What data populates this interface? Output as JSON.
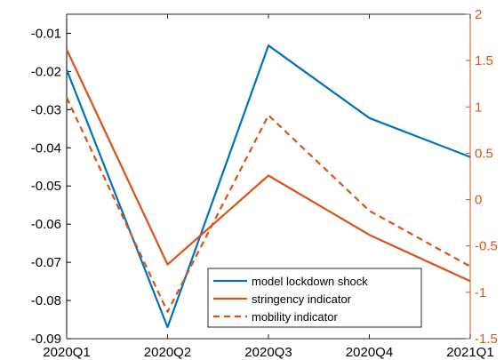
{
  "chart_data": {
    "type": "line",
    "categories": [
      "2020Q1",
      "2020Q2",
      "2020Q3",
      "2020Q4",
      "2021Q1"
    ],
    "left_axis": {
      "ylim": [
        -0.09,
        -0.005
      ],
      "ticks": [
        -0.09,
        -0.08,
        -0.07,
        -0.06,
        -0.05,
        -0.04,
        -0.03,
        -0.02,
        -0.01
      ],
      "tick_labels": [
        "-0.09",
        "-0.08",
        "-0.07",
        "-0.06",
        "-0.05",
        "-0.04",
        "-0.03",
        "-0.02",
        "-0.01"
      ],
      "color": "#000000"
    },
    "right_axis": {
      "ylim": [
        -1.5,
        2
      ],
      "ticks": [
        -1.5,
        -1,
        -0.5,
        0,
        0.5,
        1,
        1.5,
        2
      ],
      "tick_labels": [
        "-1.5",
        "-1",
        "-0.5",
        "0",
        "0.5",
        "1",
        "1.5",
        "2"
      ],
      "color": "#D95319"
    },
    "series": [
      {
        "name": "model lockdown shock",
        "axis": "left",
        "color": "#0072BD",
        "style": "solid",
        "values": [
          -0.0195,
          -0.087,
          -0.0132,
          -0.0322,
          -0.0424
        ]
      },
      {
        "name": "stringency indicator",
        "axis": "right",
        "color": "#D95319",
        "style": "solid",
        "values": [
          1.62,
          -0.7,
          0.26,
          -0.38,
          -0.88
        ]
      },
      {
        "name": "mobility indicator",
        "axis": "right",
        "color": "#D95319",
        "style": "dashed",
        "values": [
          1.1,
          -1.21,
          0.91,
          -0.12,
          -0.72
        ]
      }
    ],
    "legend_position": "bottom-center",
    "grid": false,
    "title": "",
    "xlabel": "",
    "ylabel": ""
  }
}
